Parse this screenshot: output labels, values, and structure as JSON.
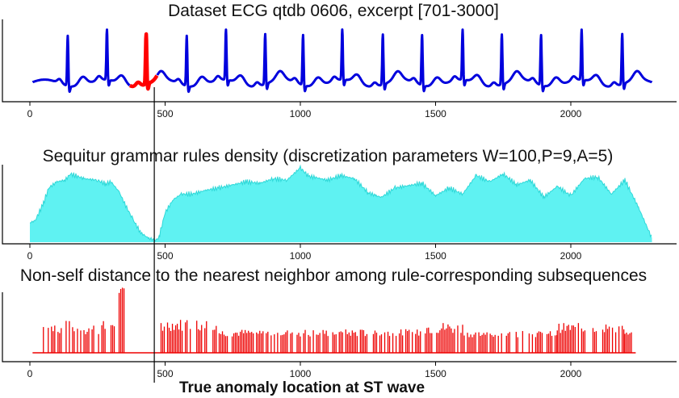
{
  "figure_caption": "True anomaly location at ST wave",
  "colors": {
    "ecg_line": "#0000dd",
    "anomaly": "#ff0000",
    "density_fill": "#5ff2f2",
    "density_line": "#2fd8d8",
    "distance_bars": "#ee0000",
    "marker": "#000000"
  },
  "chart_data": [
    {
      "type": "line",
      "title": "Dataset ECG qtdb 0606, excerpt [701-3000]",
      "xlabel": "",
      "ylabel": "",
      "x_ticks": [
        0,
        500,
        1000,
        1500,
        2000
      ],
      "x_tick_labels": [
        "0",
        "500",
        "1000",
        "1500",
        "2000"
      ],
      "xlim": [
        0,
        2300
      ],
      "ylim": [
        0,
        1
      ],
      "beat_peaks_x": [
        140,
        285,
        430,
        580,
        725,
        870,
        1010,
        1155,
        1305,
        1450,
        1600,
        1745,
        1890,
        2040,
        2190
      ],
      "anomaly_range": [
        370,
        470
      ],
      "series": [
        {
          "values": [
            0.15,
            0.2,
            0.25,
            0.28,
            0.22,
            0.19,
            0.21,
            0.24,
            0.27,
            0.25,
            0.21,
            0.19,
            0.2,
            0.22,
            0.24,
            0.26,
            0.23,
            0.2
          ]
        },
        {
          "values": [
            0.18,
            0.3,
            0.32,
            0.25,
            0.2,
            0.18,
            0.05,
            0.02
          ]
        }
      ]
    },
    {
      "type": "area",
      "title": "Sequitur grammar rules density (discretization parameters W=100,P=9,A=5)",
      "xlabel": "",
      "ylabel": "",
      "x_ticks": [
        0,
        500,
        1000,
        1500,
        2000
      ],
      "x_tick_labels": [
        "0",
        "500",
        "1000",
        "1500",
        "2000"
      ],
      "xlim": [
        0,
        2300
      ],
      "ylim": [
        0,
        1
      ],
      "x": [
        0,
        20,
        50,
        70,
        100,
        130,
        150,
        200,
        250,
        280,
        300,
        330,
        350,
        380,
        410,
        440,
        470,
        480,
        500,
        530,
        560,
        600,
        650,
        700,
        750,
        800,
        850,
        900,
        950,
        1000,
        1030,
        1050,
        1100,
        1150,
        1200,
        1250,
        1280,
        1300,
        1350,
        1400,
        1450,
        1500,
        1550,
        1600,
        1650,
        1700,
        1750,
        1800,
        1850,
        1900,
        1950,
        2000,
        2050,
        2100,
        2150,
        2200,
        2250,
        2300
      ],
      "values": [
        0.25,
        0.28,
        0.5,
        0.7,
        0.78,
        0.8,
        0.88,
        0.82,
        0.8,
        0.75,
        0.78,
        0.65,
        0.5,
        0.3,
        0.12,
        0.05,
        0.02,
        0.1,
        0.38,
        0.55,
        0.62,
        0.62,
        0.67,
        0.7,
        0.74,
        0.78,
        0.76,
        0.82,
        0.8,
        0.96,
        0.85,
        0.84,
        0.8,
        0.86,
        0.82,
        0.64,
        0.6,
        0.58,
        0.7,
        0.73,
        0.76,
        0.6,
        0.7,
        0.62,
        0.86,
        0.78,
        0.88,
        0.74,
        0.8,
        0.58,
        0.72,
        0.6,
        0.82,
        0.84,
        0.62,
        0.8,
        0.45,
        0.05
      ]
    },
    {
      "type": "bar",
      "title": "Non-self distance to the nearest neighbor among rule-corresponding subsequences",
      "xlabel": "",
      "ylabel": "",
      "x_ticks": [
        0,
        500,
        1000,
        1500,
        2000
      ],
      "x_tick_labels": [
        "0",
        "500",
        "1000",
        "1500",
        "2000"
      ],
      "xlim": [
        0,
        2300
      ],
      "ylim": [
        0,
        1
      ],
      "baseline_range": [
        0,
        2300
      ],
      "segments": [
        {
          "start": 50,
          "end": 280,
          "level": 0.4,
          "var": 0.12
        },
        {
          "start": 300,
          "end": 320,
          "level": 0.45,
          "var": 0.05
        },
        {
          "start": 330,
          "end": 350,
          "level": 1.0,
          "var": 0.05
        },
        {
          "start": 485,
          "end": 700,
          "level": 0.45,
          "var": 0.1
        },
        {
          "start": 700,
          "end": 1450,
          "level": 0.32,
          "var": 0.06
        },
        {
          "start": 1450,
          "end": 1600,
          "level": 0.4,
          "var": 0.1
        },
        {
          "start": 1600,
          "end": 1950,
          "level": 0.3,
          "var": 0.05
        },
        {
          "start": 1950,
          "end": 2200,
          "level": 0.4,
          "var": 0.08
        },
        {
          "start": 2200,
          "end": 2240,
          "level": 0.3,
          "var": 0.03
        }
      ]
    }
  ],
  "marker_x": 460
}
